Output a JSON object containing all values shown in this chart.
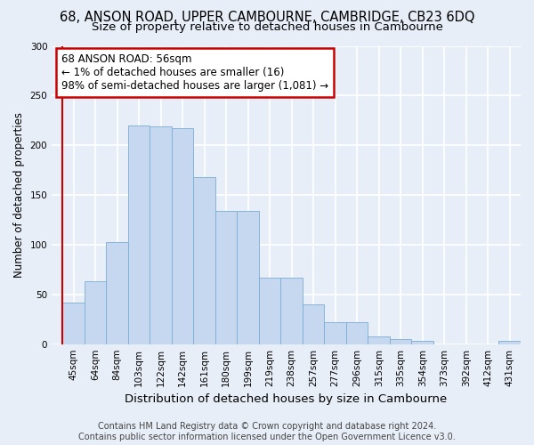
{
  "title": "68, ANSON ROAD, UPPER CAMBOURNE, CAMBRIDGE, CB23 6DQ",
  "subtitle": "Size of property relative to detached houses in Cambourne",
  "xlabel": "Distribution of detached houses by size in Cambourne",
  "ylabel": "Number of detached properties",
  "categories": [
    "45sqm",
    "64sqm",
    "84sqm",
    "103sqm",
    "122sqm",
    "142sqm",
    "161sqm",
    "180sqm",
    "199sqm",
    "219sqm",
    "238sqm",
    "257sqm",
    "277sqm",
    "296sqm",
    "315sqm",
    "335sqm",
    "354sqm",
    "373sqm",
    "392sqm",
    "412sqm",
    "431sqm"
  ],
  "values": [
    42,
    63,
    103,
    220,
    219,
    217,
    168,
    134,
    134,
    67,
    67,
    40,
    22,
    22,
    8,
    5,
    3,
    0,
    0,
    0,
    3
  ],
  "bar_color": "#c5d8f0",
  "bar_edge_color": "#7aadd4",
  "annotation_line1": "68 ANSON ROAD: 56sqm",
  "annotation_line2": "← 1% of detached houses are smaller (16)",
  "annotation_line3": "98% of semi-detached houses are larger (1,081) →",
  "annotation_box_color": "#ffffff",
  "annotation_box_edge_color": "#cc0000",
  "vline_color": "#cc0000",
  "footer": "Contains HM Land Registry data © Crown copyright and database right 2024.\nContains public sector information licensed under the Open Government Licence v3.0.",
  "bg_color": "#e8eef8",
  "plot_bg_color": "#e8eef8",
  "grid_color": "#ffffff",
  "ylim": [
    0,
    300
  ],
  "yticks": [
    0,
    50,
    100,
    150,
    200,
    250,
    300
  ],
  "title_fontsize": 10.5,
  "subtitle_fontsize": 9.5,
  "xlabel_fontsize": 9.5,
  "ylabel_fontsize": 8.5,
  "tick_fontsize": 7.5,
  "annot_fontsize": 8.5,
  "footer_fontsize": 7.0
}
